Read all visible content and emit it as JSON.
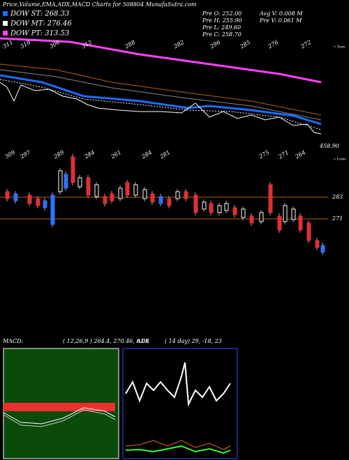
{
  "header": {
    "title": "Price,Volume,EMA,ADX,MACD Charts for 508804  MunafaSutra.com"
  },
  "legend": [
    {
      "label": "DOW ST: 268.33",
      "color": "#1e6cff"
    },
    {
      "label": "DOW MT: 276.46",
      "color": "#ffffff"
    },
    {
      "label": "DOW PT: 313.53",
      "color": "#ff40ff"
    }
  ],
  "stats": {
    "col1": [
      "Pre  O: 252.00",
      "Pre  H: 255.90",
      "Pre  L: 249.60",
      "Pre  C: 258.70"
    ],
    "col2": [
      "Avg V: 0.008 M",
      "Pre  V: 0.061 M"
    ]
  },
  "price_chart": {
    "tops": [
      "311",
      "318",
      "306",
      "312",
      "288",
      "282",
      "296",
      "285",
      "276",
      "272"
    ],
    "tops_label": "« Tops",
    "lows": [
      "309",
      "297",
      "289",
      "284",
      "261",
      "284",
      "281",
      "275",
      "271",
      "264"
    ],
    "lows_label": "« Lows",
    "last_price": "458.90",
    "levels": [
      "283",
      "271"
    ]
  },
  "macd": {
    "label": "MACD:",
    "params": "( 12,26,9 ) 264.4,  270.46,  6.06"
  },
  "adx": {
    "label": "ADX",
    "params": "( 14  day) 29,  -18,  23"
  }
}
